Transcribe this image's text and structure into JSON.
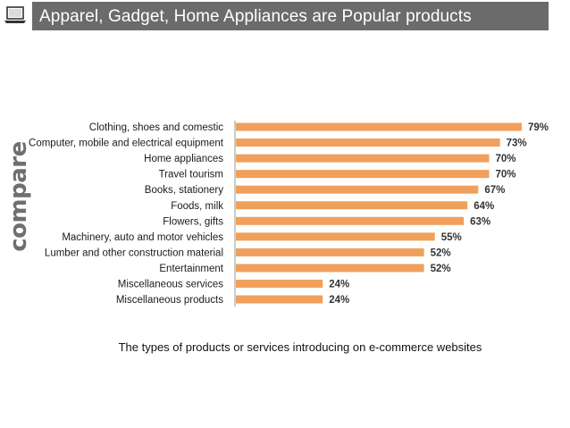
{
  "header": {
    "title": "Apparel, Gadget, Home Appliances are Popular products",
    "icon": "laptop-icon",
    "bar_color": "#6b6b6b"
  },
  "watermark": {
    "text": "compare"
  },
  "chart_data": {
    "type": "bar",
    "orientation": "horizontal",
    "categories": [
      "Clothing, shoes and comestic",
      "Computer, mobile and electrical equipment",
      "Home appliances",
      "Travel tourism",
      "Books, stationery",
      "Foods, milk",
      "Flowers, gifts",
      "Machinery, auto and motor vehicles",
      "Lumber and other construction material",
      "Entertainment",
      "Miscellaneous services",
      "Miscellaneous products"
    ],
    "values": [
      79,
      73,
      70,
      70,
      67,
      64,
      63,
      55,
      52,
      52,
      24,
      24
    ],
    "data_labels": [
      "79%",
      "73%",
      "70%",
      "70%",
      "67%",
      "64%",
      "63%",
      "55%",
      "52%",
      "52%",
      "24%",
      "24%"
    ],
    "bar_color": "#f0a05c",
    "xlim": [
      0,
      100
    ],
    "grid": false,
    "legend": false,
    "title": "",
    "xlabel": "",
    "ylabel": "",
    "caption": "The types of products or services introducing on e-commerce websites"
  }
}
